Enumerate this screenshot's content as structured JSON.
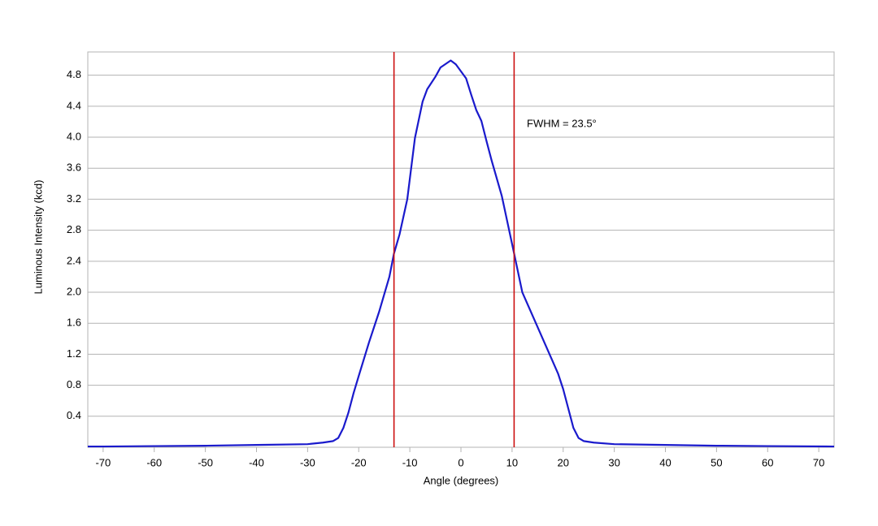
{
  "chart_data": {
    "type": "line",
    "x_label": "Angle (degrees)",
    "y_label": "Luminous Intensity (kcd)",
    "annotation": "FWHM = 23.5°",
    "x": [
      -73,
      -70,
      -60,
      -50,
      -40,
      -30,
      -27,
      -25,
      -24,
      -23,
      -22,
      -21,
      -20,
      -18,
      -16,
      -14,
      -13.1,
      -12,
      -10.5,
      -9,
      -7.5,
      -6.6,
      -5,
      -4,
      -2,
      -1,
      0,
      1,
      2,
      3,
      4,
      5,
      6,
      8,
      10.4,
      12,
      14,
      16,
      18,
      19,
      20,
      21,
      22,
      23,
      24,
      26,
      30,
      40,
      50,
      60,
      73
    ],
    "values": [
      0.01,
      0.01,
      0.015,
      0.02,
      0.03,
      0.04,
      0.06,
      0.08,
      0.12,
      0.25,
      0.45,
      0.7,
      0.92,
      1.35,
      1.75,
      2.2,
      2.5,
      2.75,
      3.2,
      3.99,
      4.46,
      4.62,
      4.78,
      4.9,
      4.99,
      4.94,
      4.85,
      4.76,
      4.55,
      4.35,
      4.21,
      3.95,
      3.7,
      3.24,
      2.5,
      2.0,
      1.7,
      1.4,
      1.1,
      0.95,
      0.75,
      0.5,
      0.25,
      0.12,
      0.08,
      0.06,
      0.04,
      0.03,
      0.02,
      0.015,
      0.01
    ],
    "color": "#1a1acc",
    "vlines": [
      -13.1,
      10.4
    ],
    "vline_color": "#cc1111",
    "xlim": [
      -73,
      73
    ],
    "xticks": [
      -70,
      -60,
      -50,
      -40,
      -30,
      -20,
      -10,
      0,
      10,
      20,
      30,
      40,
      50,
      60,
      70
    ],
    "ylim": [
      0,
      5.1
    ],
    "yticks": [
      0.4,
      0.8,
      1.2,
      1.6,
      {
        "value": 2.0,
        "label": "2.0"
      },
      2.4,
      2.8,
      3.2,
      3.6,
      {
        "value": 4.0,
        "label": "4.0"
      },
      4.4,
      4.8
    ],
    "grid": true
  }
}
